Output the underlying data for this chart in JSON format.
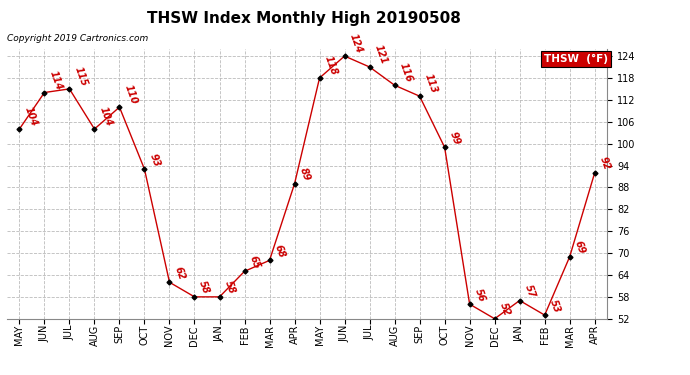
{
  "title": "THSW Index Monthly High 20190508",
  "copyright": "Copyright 2019 Cartronics.com",
  "legend_label": "THSW  (°F)",
  "months": [
    "MAY",
    "JUN",
    "JUL",
    "AUG",
    "SEP",
    "OCT",
    "NOV",
    "DEC",
    "JAN",
    "FEB",
    "MAR",
    "APR",
    "MAY",
    "JUN",
    "JUL",
    "AUG",
    "SEP",
    "OCT",
    "NOV",
    "DEC",
    "JAN",
    "FEB",
    "MAR",
    "APR"
  ],
  "values": [
    104,
    114,
    115,
    104,
    110,
    93,
    62,
    58,
    58,
    65,
    68,
    89,
    118,
    124,
    121,
    116,
    113,
    99,
    56,
    52,
    57,
    53,
    69,
    92
  ],
  "ylim_min": 52.0,
  "ylim_max": 126.0,
  "yticks": [
    52.0,
    58.0,
    64.0,
    70.0,
    76.0,
    82.0,
    88.0,
    94.0,
    100.0,
    106.0,
    112.0,
    118.0,
    124.0
  ],
  "line_color": "#cc0000",
  "marker_color": "#000000",
  "background_color": "#ffffff",
  "grid_color": "#bbbbbb",
  "title_fontsize": 11,
  "tick_fontsize": 7,
  "annotation_fontsize": 7,
  "legend_bg_color": "#cc0000",
  "legend_text_color": "#ffffff"
}
